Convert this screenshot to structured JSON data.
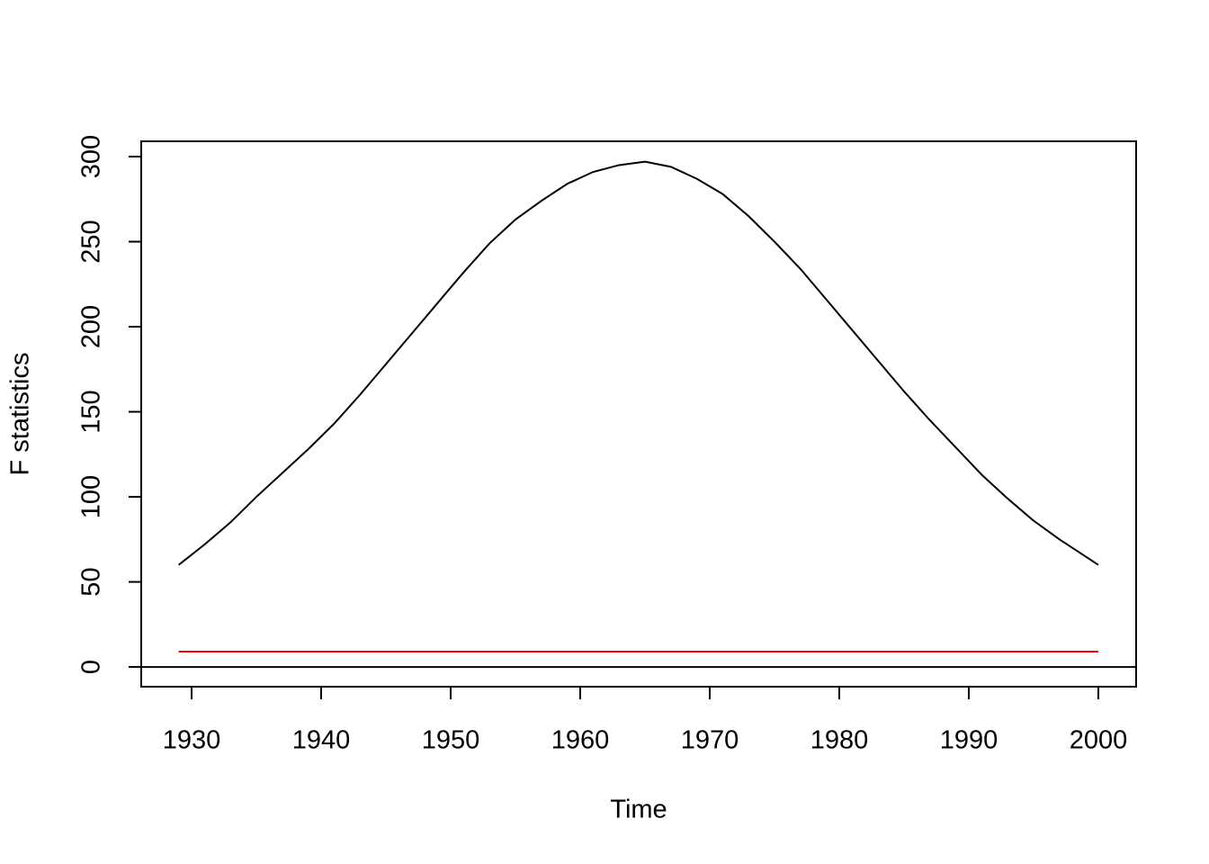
{
  "chart_data": {
    "type": "line",
    "x_label": "Time",
    "y_label": "F statistics",
    "xlim": [
      1926.11,
      2002.92
    ],
    "ylim": [
      -11.6,
      309
    ],
    "xticks": [
      1930,
      1940,
      1950,
      1960,
      1970,
      1980,
      1990,
      2000
    ],
    "yticks": [
      0,
      50,
      100,
      150,
      200,
      250,
      300
    ],
    "hline": 0,
    "series": [
      {
        "color": "#000000",
        "x": [
          1929,
          1931,
          1933,
          1935,
          1937,
          1939,
          1941,
          1943,
          1945,
          1947,
          1949,
          1951,
          1953,
          1955,
          1957,
          1959,
          1961,
          1963,
          1965,
          1967,
          1969,
          1971,
          1973,
          1975,
          1977,
          1979,
          1981,
          1983,
          1985,
          1987,
          1989,
          1991,
          1993,
          1995,
          1997,
          1999,
          2000
        ],
        "values": [
          60,
          72,
          85,
          100,
          114,
          128,
          143,
          160,
          178,
          196,
          214,
          232,
          249,
          263,
          274,
          284,
          291,
          295,
          297,
          294,
          287,
          278,
          265,
          250,
          234,
          216,
          198,
          180,
          162,
          145,
          129,
          113,
          99,
          86,
          75,
          65,
          60
        ]
      },
      {
        "color": "#ff0000",
        "x": [
          1929,
          2000
        ],
        "values": [
          9,
          9
        ]
      }
    ]
  }
}
